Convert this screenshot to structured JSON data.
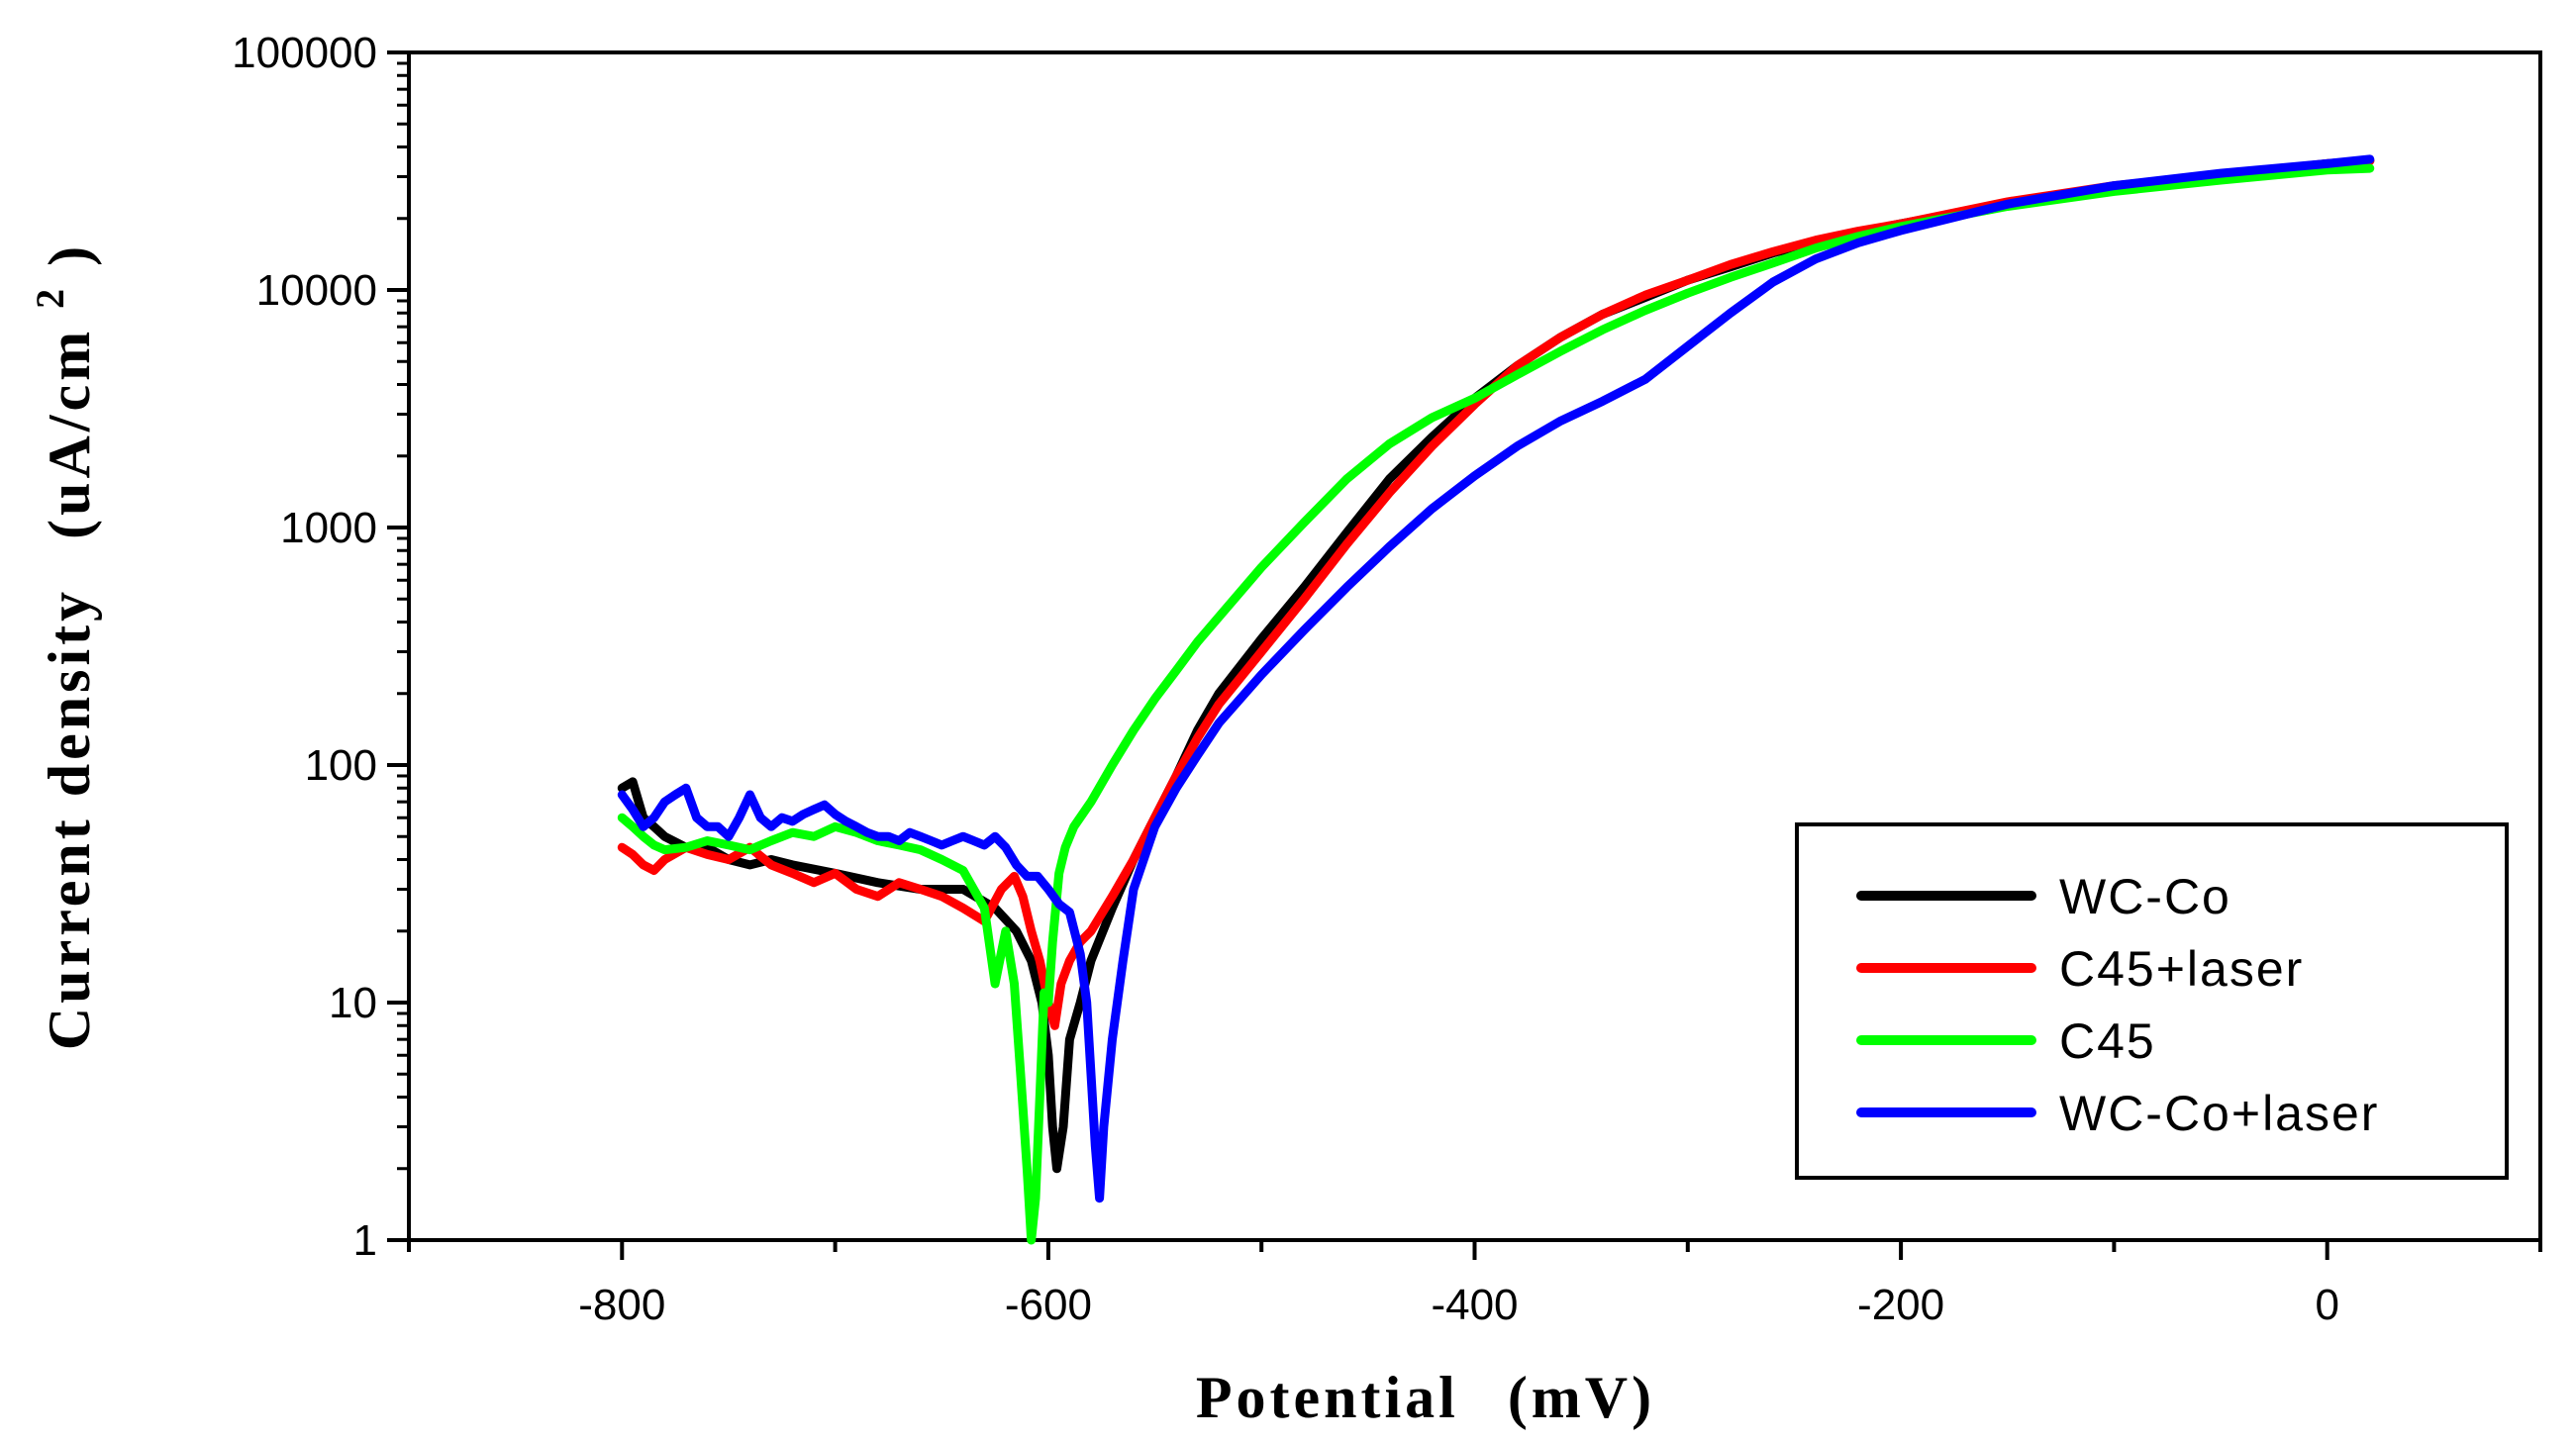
{
  "chart_data": {
    "type": "line",
    "title": "",
    "xlabel": "Potential (mV)",
    "xlabel_main": "Potential",
    "xlabel_unit": "(mV)",
    "ylabel_main": "Current density",
    "ylabel_unit_prefix": "(uA/cm",
    "ylabel_unit_exp": "2",
    "ylabel_unit_suffix": ")",
    "yscale": "log",
    "xlim": [
      -900,
      100
    ],
    "ylim": [
      1,
      100000
    ],
    "x_ticks": [
      -800,
      -600,
      -400,
      -200,
      0
    ],
    "x_tick_labels": [
      "-800",
      "-600",
      "-400",
      "-200",
      "0"
    ],
    "y_ticks": [
      1,
      10,
      100,
      1000,
      10000,
      100000
    ],
    "y_tick_labels": [
      "1",
      "10",
      "100",
      "1000",
      "10000",
      "100000"
    ],
    "legend_position": "lower-right",
    "series": [
      {
        "name": "WC-Co",
        "color": "#000000",
        "x": [
          -800,
          -795,
          -790,
          -785,
          -780,
          -770,
          -760,
          -750,
          -740,
          -730,
          -720,
          -700,
          -680,
          -660,
          -640,
          -625,
          -615,
          -608,
          -603,
          -600,
          -598,
          -596,
          -593,
          -590,
          -585,
          -580,
          -570,
          -560,
          -550,
          -540,
          -530,
          -520,
          -500,
          -480,
          -460,
          -440,
          -420,
          -400,
          -380,
          -360,
          -340,
          -320,
          -300,
          -280,
          -260,
          -240,
          -220,
          -200,
          -150,
          -100,
          -50,
          0,
          20
        ],
        "y": [
          80,
          85,
          60,
          55,
          50,
          45,
          45,
          40,
          38,
          40,
          38,
          35,
          32,
          30,
          30,
          25,
          20,
          15,
          10,
          6,
          3,
          2,
          3,
          7,
          10,
          15,
          25,
          40,
          60,
          90,
          140,
          200,
          340,
          560,
          950,
          1600,
          2400,
          3500,
          4800,
          6300,
          7900,
          9300,
          11000,
          12500,
          14300,
          16000,
          17500,
          19000,
          23000,
          27000,
          30000,
          34000,
          35000
        ]
      },
      {
        "name": "C45+laser",
        "color": "#ff0000",
        "x": [
          -800,
          -795,
          -790,
          -785,
          -780,
          -770,
          -760,
          -750,
          -740,
          -730,
          -720,
          -710,
          -700,
          -690,
          -680,
          -670,
          -660,
          -650,
          -640,
          -630,
          -622,
          -616,
          -612,
          -608,
          -604,
          -600,
          -597,
          -594,
          -590,
          -585,
          -580,
          -570,
          -560,
          -550,
          -540,
          -530,
          -520,
          -500,
          -480,
          -460,
          -440,
          -420,
          -400,
          -380,
          -360,
          -340,
          -320,
          -300,
          -280,
          -260,
          -240,
          -220,
          -200,
          -150,
          -100,
          -50,
          0,
          20
        ],
        "y": [
          45,
          42,
          38,
          36,
          40,
          45,
          42,
          40,
          45,
          38,
          35,
          32,
          35,
          30,
          28,
          32,
          30,
          28,
          25,
          22,
          30,
          34,
          28,
          20,
          15,
          10,
          8,
          12,
          15,
          18,
          20,
          28,
          40,
          60,
          90,
          130,
          180,
          300,
          500,
          850,
          1400,
          2200,
          3300,
          4800,
          6300,
          7900,
          9500,
          11000,
          12800,
          14500,
          16200,
          17700,
          19000,
          23500,
          27500,
          30500,
          34000,
          35000
        ]
      },
      {
        "name": "C45",
        "color": "#00ff00",
        "x": [
          -800,
          -795,
          -790,
          -785,
          -780,
          -770,
          -760,
          -750,
          -740,
          -730,
          -720,
          -710,
          -700,
          -690,
          -680,
          -670,
          -660,
          -650,
          -640,
          -630,
          -625,
          -620,
          -616,
          -613,
          -610,
          -608,
          -606,
          -604,
          -602,
          -600,
          -598,
          -595,
          -592,
          -588,
          -580,
          -570,
          -560,
          -550,
          -540,
          -530,
          -520,
          -500,
          -480,
          -460,
          -440,
          -420,
          -400,
          -380,
          -360,
          -340,
          -320,
          -300,
          -280,
          -260,
          -240,
          -220,
          -200,
          -150,
          -100,
          -50,
          0,
          20
        ],
        "y": [
          60,
          55,
          50,
          46,
          44,
          45,
          48,
          46,
          44,
          48,
          52,
          50,
          55,
          52,
          48,
          46,
          44,
          40,
          36,
          25,
          12,
          20,
          12,
          5,
          2,
          1,
          1.5,
          4,
          11,
          10,
          18,
          35,
          45,
          55,
          70,
          100,
          140,
          190,
          250,
          330,
          420,
          680,
          1050,
          1600,
          2250,
          2900,
          3500,
          4400,
          5500,
          6800,
          8200,
          9700,
          11300,
          13000,
          15000,
          16800,
          18500,
          22500,
          26000,
          29000,
          32000,
          32500
        ]
      },
      {
        "name": "WC-Co+laser",
        "color": "#0000ff",
        "x": [
          -800,
          -795,
          -790,
          -785,
          -780,
          -775,
          -770,
          -765,
          -760,
          -755,
          -750,
          -745,
          -740,
          -735,
          -730,
          -725,
          -720,
          -715,
          -710,
          -705,
          -700,
          -695,
          -690,
          -685,
          -680,
          -675,
          -670,
          -665,
          -660,
          -655,
          -650,
          -645,
          -640,
          -635,
          -630,
          -625,
          -620,
          -615,
          -610,
          -605,
          -600,
          -595,
          -590,
          -585,
          -582,
          -580,
          -578,
          -576,
          -574,
          -570,
          -565,
          -560,
          -550,
          -540,
          -530,
          -520,
          -500,
          -480,
          -460,
          -440,
          -420,
          -400,
          -380,
          -360,
          -340,
          -320,
          -300,
          -280,
          -260,
          -240,
          -220,
          -200,
          -150,
          -100,
          -50,
          0,
          20
        ],
        "y": [
          75,
          65,
          55,
          60,
          70,
          75,
          80,
          60,
          55,
          55,
          50,
          60,
          75,
          60,
          55,
          60,
          58,
          62,
          65,
          68,
          62,
          58,
          55,
          52,
          50,
          50,
          48,
          52,
          50,
          48,
          46,
          48,
          50,
          48,
          46,
          50,
          45,
          38,
          34,
          34,
          30,
          26,
          24,
          16,
          10,
          5,
          2.5,
          1.5,
          3,
          7,
          15,
          30,
          55,
          80,
          110,
          150,
          240,
          370,
          560,
          830,
          1200,
          1650,
          2200,
          2800,
          3400,
          4200,
          5800,
          8000,
          10800,
          13500,
          15800,
          17800,
          23000,
          27500,
          31000,
          34000,
          35500
        ]
      }
    ]
  }
}
